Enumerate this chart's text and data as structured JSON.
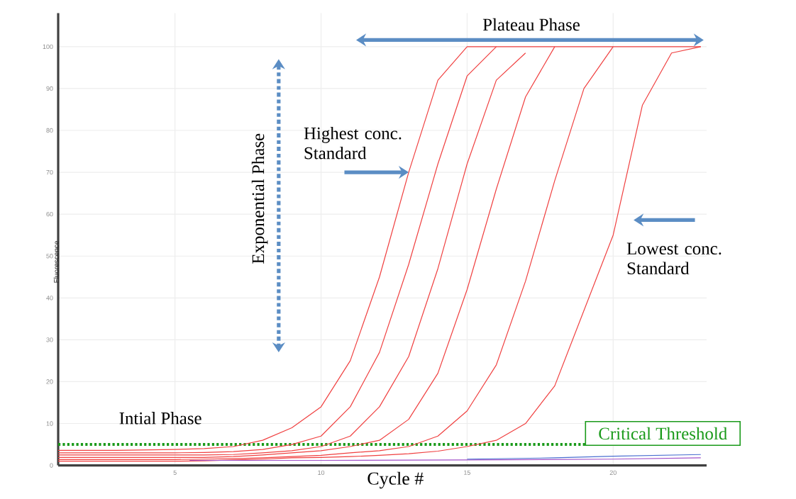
{
  "chart_data": {
    "type": "line",
    "xlabel": "Cycle #",
    "ylabel": "Fluorescence",
    "xlim": [
      1,
      23.2
    ],
    "ylim": [
      0,
      108
    ],
    "xticks": [
      5,
      10,
      15,
      20
    ],
    "yticks": [
      0,
      10,
      20,
      30,
      40,
      50,
      60,
      70,
      80,
      90,
      100
    ],
    "grid": true,
    "series": [
      {
        "color": "#f04040",
        "x": [
          1,
          2,
          3,
          4,
          5,
          6,
          7,
          8,
          9,
          10,
          11,
          12,
          13,
          14,
          15,
          16,
          17,
          18,
          19,
          20,
          21,
          22,
          23
        ],
        "values": [
          3.6,
          3.6,
          3.6,
          3.7,
          3.8,
          4,
          4.5,
          6,
          9,
          14,
          25,
          45,
          70,
          92,
          100,
          100,
          100,
          100,
          100,
          100,
          100,
          100,
          100
        ]
      },
      {
        "color": "#f04040",
        "x": [
          1,
          2,
          3,
          4,
          5,
          6,
          7,
          8,
          9,
          10,
          11,
          12,
          13,
          14,
          15,
          16
        ],
        "values": [
          3,
          3,
          3,
          3,
          3,
          3.1,
          3.3,
          3.8,
          5,
          7,
          14,
          27,
          48,
          72,
          93,
          100
        ]
      },
      {
        "color": "#f04040",
        "x": [
          1,
          2,
          3,
          4,
          5,
          6,
          7,
          8,
          9,
          10,
          11,
          12,
          13,
          14,
          15,
          16,
          17
        ],
        "values": [
          2.5,
          2.5,
          2.5,
          2.5,
          2.5,
          2.5,
          2.6,
          3,
          3.5,
          4.5,
          7,
          14,
          26,
          47,
          72,
          92,
          98.5
        ]
      },
      {
        "color": "#f04040",
        "x": [
          1,
          2,
          3,
          4,
          5,
          6,
          7,
          8,
          9,
          10,
          11,
          12,
          13,
          14,
          15,
          16,
          17,
          18
        ],
        "values": [
          1.9,
          1.9,
          1.9,
          1.9,
          1.9,
          1.9,
          2.1,
          2.5,
          3,
          3.5,
          4.5,
          6,
          11,
          22,
          42,
          66,
          88,
          100
        ]
      },
      {
        "color": "#f04040",
        "x": [
          1,
          2,
          3,
          4,
          5,
          6,
          7,
          8,
          9,
          10,
          11,
          12,
          13,
          14,
          15,
          16,
          17,
          18,
          19,
          20
        ],
        "values": [
          1.4,
          1.4,
          1.4,
          1.4,
          1.4,
          1.5,
          1.6,
          1.8,
          2.1,
          2.4,
          3,
          3.5,
          4.5,
          7,
          13,
          24,
          44,
          68,
          90,
          100
        ]
      },
      {
        "color": "#f04040",
        "x": [
          1,
          2,
          3,
          4,
          5,
          6,
          7,
          8,
          9,
          10,
          11,
          12,
          13,
          14,
          15,
          16,
          17,
          18,
          19,
          20,
          21,
          22,
          23
        ],
        "values": [
          1,
          1,
          1,
          1,
          1,
          1.1,
          1.3,
          1.5,
          1.8,
          1.9,
          2.1,
          2.4,
          2.8,
          3.4,
          4.5,
          6,
          10,
          19,
          37,
          55,
          86,
          98.5,
          100
        ]
      },
      {
        "color": "#a050c8",
        "x": [
          5.5,
          10,
          15,
          20,
          23
        ],
        "values": [
          1.2,
          1.2,
          1.3,
          1.5,
          1.8
        ]
      },
      {
        "color": "#4a6fd0",
        "x": [
          15,
          18,
          20,
          23
        ],
        "values": [
          1.5,
          1.8,
          2.2,
          2.6
        ]
      }
    ],
    "ref_lines": [
      {
        "axis": "y",
        "value": 5,
        "label": "Critical Threshold",
        "color": "#1a9a1a",
        "line_style": "dotted"
      }
    ],
    "annotations": [
      "Plateau Phase",
      "Exponential Phase",
      {
        "text": "Highest conc. Standard",
        "x": 13,
        "y": 70
      },
      "Lowest conc. Standard",
      "Intial Phase"
    ]
  }
}
